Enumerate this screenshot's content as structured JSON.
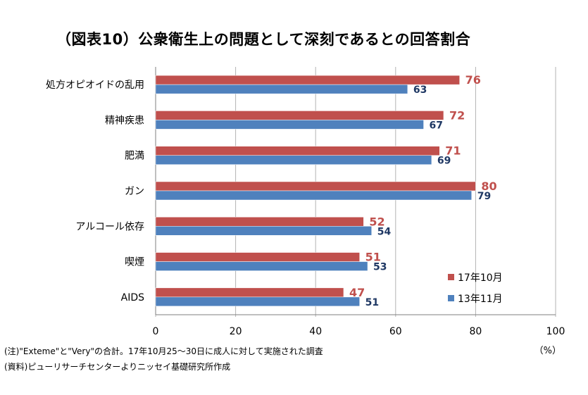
{
  "title": "（図表10）公衆衛生上の問題として深刻であるとの回答割合",
  "note": "(注)\"Exteme\"と\"Very\"の合計。17年10月25～30日に成人に対して実施された調査",
  "source": "(資料)ピューリサーチセンターよりニッセイ基礎研究所作成",
  "unit": "（%）",
  "chart_data": {
    "type": "bar",
    "orientation": "horizontal",
    "categories": [
      "処方オピオイドの乱用",
      "精神疾患",
      "肥満",
      "ガン",
      "アルコール依存",
      "喫煙",
      "AIDS"
    ],
    "series": [
      {
        "name": "17年10月",
        "color": "#c0504d",
        "values": [
          76,
          72,
          71,
          80,
          52,
          51,
          47
        ]
      },
      {
        "name": "13年11月",
        "color": "#4f81bd",
        "values": [
          63,
          67,
          69,
          79,
          54,
          53,
          51
        ]
      }
    ],
    "xlim": [
      0,
      100
    ],
    "xticks": [
      0,
      20,
      40,
      60,
      80,
      100
    ],
    "grid": true,
    "legend_position": "bottom-right",
    "data_labels": true
  }
}
